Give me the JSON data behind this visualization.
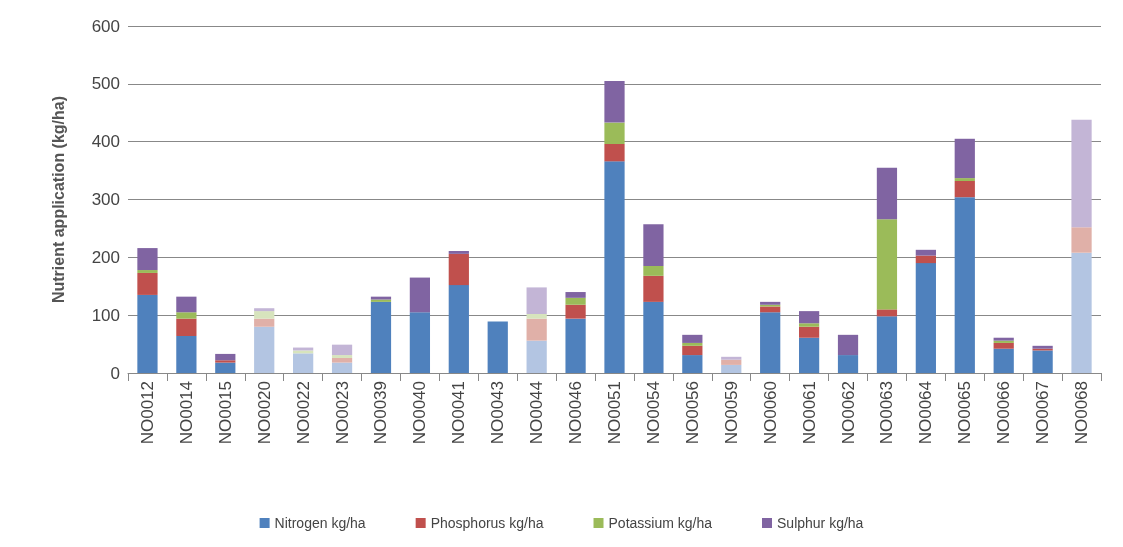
{
  "chart_data": {
    "type": "bar",
    "stacked": true,
    "ylabel": "Nutrient application (kg/ha)",
    "categories": [
      "NO0012",
      "NO0014",
      "NO0015",
      "NO0020",
      "NO0022",
      "NO0023",
      "NO0039",
      "NO0040",
      "NO0041",
      "NO0043",
      "NO0044",
      "NO0046",
      "NO0051",
      "NO0054",
      "NO0056",
      "NO0059",
      "NO0060",
      "NO0061",
      "NO0062",
      "NO0063",
      "NO0064",
      "NO0065",
      "NO0066",
      "NO0067",
      "NO0068"
    ],
    "series": [
      {
        "name": "Nitrogen kg/ha",
        "color": "#4f81bd",
        "colors": [
          "#4f81bd",
          "#4f81bd",
          "#4f81bd",
          "#b3c5e2",
          "#b3c5e2",
          "#b3c5e2",
          "#4f81bd",
          "#4f81bd",
          "#4f81bd",
          "#4f81bd",
          "#b3c5e2",
          "#4f81bd",
          "#4f81bd",
          "#4f81bd",
          "#4f81bd",
          "#b3c5e2",
          "#4f81bd",
          "#4f81bd",
          "#4f81bd",
          "#4f81bd",
          "#4f81bd",
          "#4f81bd",
          "#4f81bd",
          "#4f81bd",
          "#b3c5e2"
        ],
        "values": [
          135,
          64,
          18,
          80,
          34,
          18,
          123,
          105,
          152,
          89,
          56,
          94,
          366,
          123,
          31,
          14,
          105,
          61,
          31,
          98,
          190,
          304,
          42,
          39,
          208
        ]
      },
      {
        "name": "Phosphorus kg/ha",
        "color": "#c0504d",
        "colors": [
          "#c0504d",
          "#c0504d",
          "#c0504d",
          "#e0b0a8",
          "#e0b0a8",
          "#e0b0a8",
          "#c0504d",
          "#c0504d",
          "#c0504d",
          "#c0504d",
          "#e0b0a8",
          "#c0504d",
          "#c0504d",
          "#c0504d",
          "#c0504d",
          "#e0b0a8",
          "#c0504d",
          "#c0504d",
          "#c0504d",
          "#c0504d",
          "#c0504d",
          "#c0504d",
          "#c0504d",
          "#c0504d",
          "#e0b0a8"
        ],
        "values": [
          38,
          30,
          4,
          14,
          0,
          8,
          0,
          0,
          54,
          0,
          38,
          24,
          30,
          45,
          16,
          9,
          10,
          19,
          0,
          12,
          13,
          28,
          10,
          3,
          44
        ]
      },
      {
        "name": "Potassium kg/ha",
        "color": "#9bbb59",
        "colors": [
          "#9bbb59",
          "#9bbb59",
          "#9bbb59",
          "#d7e4bd",
          "#d7e4bd",
          "#d7e4bd",
          "#9bbb59",
          "#9bbb59",
          "#9bbb59",
          "#9bbb59",
          "#d7e4bd",
          "#9bbb59",
          "#9bbb59",
          "#9bbb59",
          "#9bbb59",
          "#d7e4bd",
          "#9bbb59",
          "#9bbb59",
          "#9bbb59",
          "#9bbb59",
          "#9bbb59",
          "#9bbb59",
          "#9bbb59",
          "#9bbb59",
          "#d7e4bd"
        ],
        "values": [
          5,
          11,
          0,
          13,
          5,
          5,
          4,
          0,
          0,
          0,
          8,
          12,
          37,
          17,
          5,
          0,
          3,
          6,
          0,
          156,
          0,
          5,
          4,
          0,
          0
        ]
      },
      {
        "name": "Sulphur kg/ha",
        "color": "#8064a2",
        "colors": [
          "#8064a2",
          "#8064a2",
          "#8064a2",
          "#c3b5d6",
          "#c3b5d6",
          "#c3b5d6",
          "#8064a2",
          "#8064a2",
          "#8064a2",
          "#8064a2",
          "#c3b5d6",
          "#8064a2",
          "#8064a2",
          "#8064a2",
          "#8064a2",
          "#c3b5d6",
          "#8064a2",
          "#8064a2",
          "#8064a2",
          "#8064a2",
          "#8064a2",
          "#8064a2",
          "#8064a2",
          "#8064a2",
          "#c3b5d6"
        ],
        "values": [
          38,
          27,
          11,
          5,
          5,
          18,
          5,
          60,
          5,
          0,
          46,
          10,
          72,
          72,
          14,
          5,
          5,
          21,
          35,
          89,
          10,
          68,
          5,
          5,
          186
        ]
      }
    ],
    "ylim": [
      0,
      600
    ],
    "yticks": [
      0,
      100,
      200,
      300,
      400,
      500,
      600
    ],
    "grid": "y",
    "legend": "bottom"
  }
}
